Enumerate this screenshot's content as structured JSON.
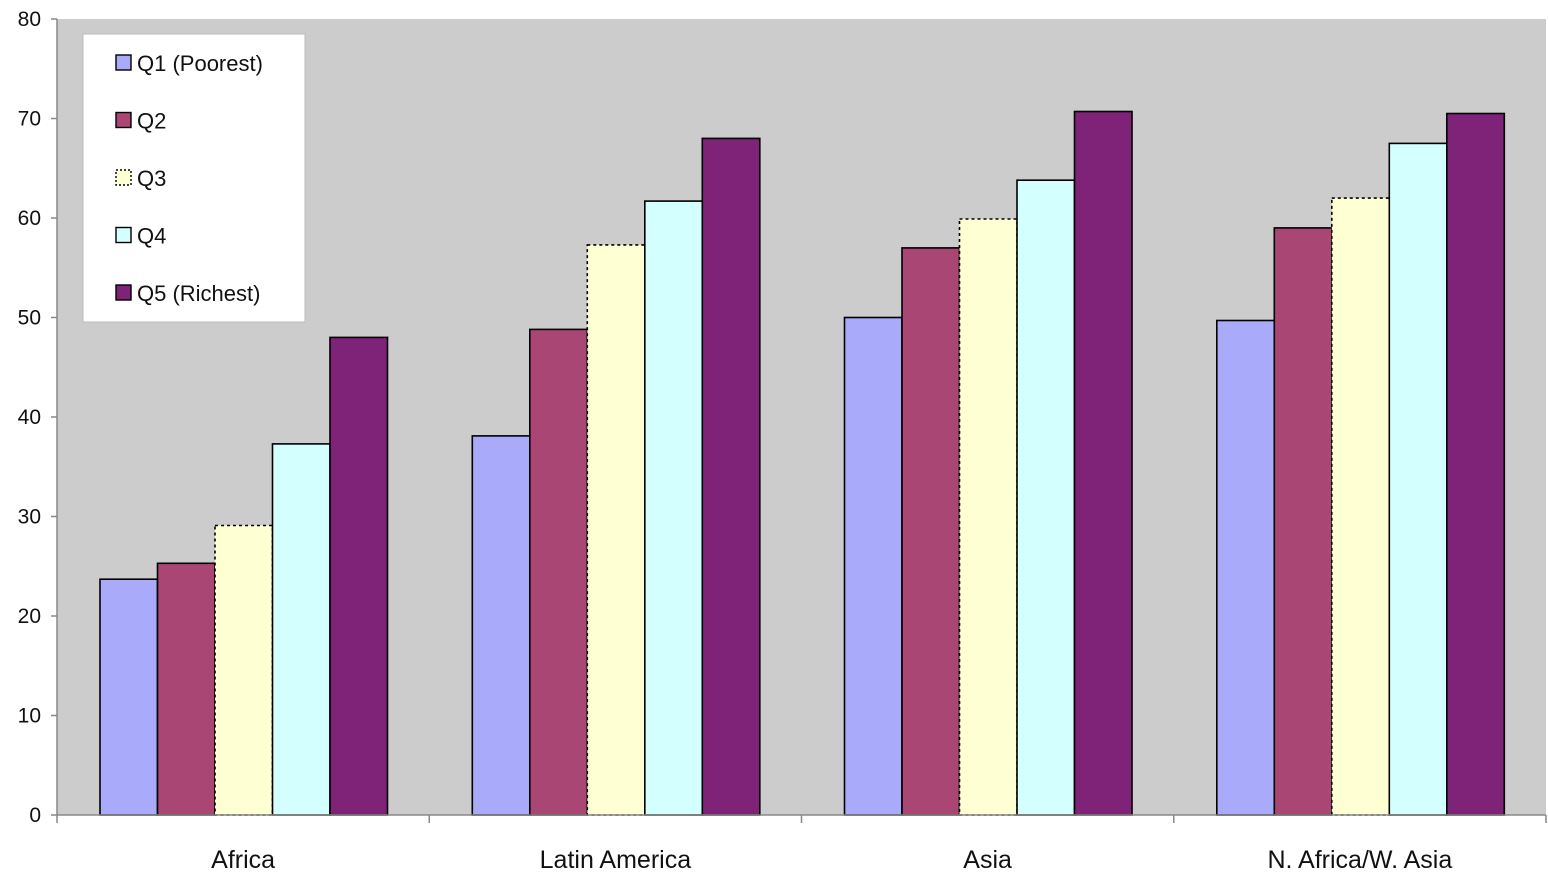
{
  "chart_data": {
    "type": "bar",
    "categories": [
      "Africa",
      "Latin America",
      "Asia",
      "N. Africa/W. Asia"
    ],
    "series": [
      {
        "name": "Q1 (Poorest)",
        "color": "#a9aaf9",
        "values": [
          23.7,
          38.1,
          50.0,
          49.7
        ]
      },
      {
        "name": "Q2",
        "color": "#aa4673",
        "values": [
          25.3,
          48.8,
          57.0,
          59.0
        ]
      },
      {
        "name": "Q3",
        "color": "#ffffd4",
        "dashed": true,
        "values": [
          29.1,
          57.3,
          59.9,
          62.0
        ]
      },
      {
        "name": "Q4",
        "color": "#d4ffff",
        "values": [
          37.3,
          61.7,
          63.8,
          67.5
        ]
      },
      {
        "name": "Q5 (Richest)",
        "color": "#7e2377",
        "values": [
          48.0,
          68.0,
          70.7,
          70.5
        ]
      }
    ],
    "ylim": [
      0,
      80
    ],
    "yticks": [
      "0",
      "10",
      "20",
      "30",
      "40",
      "50",
      "60",
      "70",
      "80"
    ],
    "title": "",
    "xlabel": "",
    "ylabel": "",
    "plot_background": "#cccccc",
    "grid": false,
    "legend_position": "top-left"
  }
}
